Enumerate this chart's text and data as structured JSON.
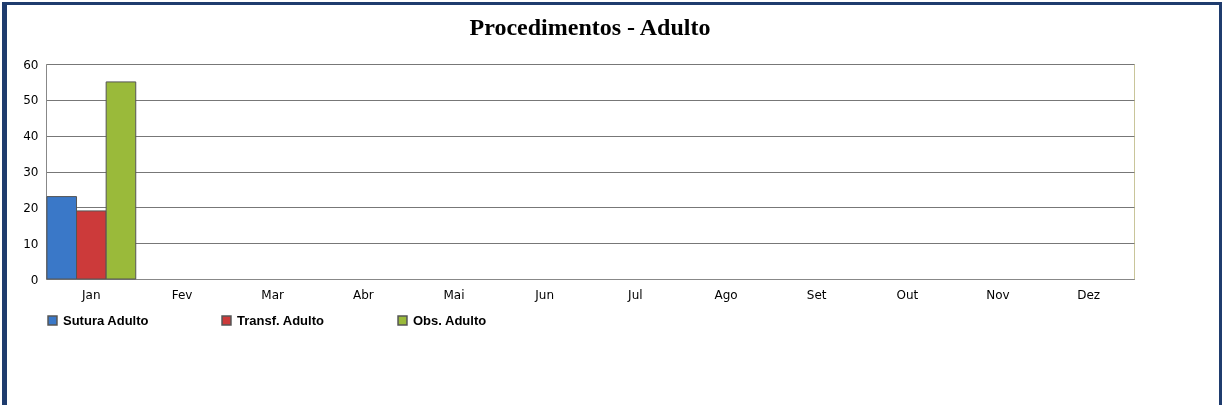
{
  "chart_data": {
    "type": "bar",
    "title": "Procedimentos - Adulto",
    "categories": [
      "Jan",
      "Fev",
      "Mar",
      "Abr",
      "Mai",
      "Jun",
      "Jul",
      "Ago",
      "Set",
      "Out",
      "Nov",
      "Dez"
    ],
    "series": [
      {
        "name": "Sutura Adulto",
        "color": "#3a78c8",
        "values": [
          23,
          null,
          null,
          null,
          null,
          null,
          null,
          null,
          null,
          null,
          null,
          null
        ]
      },
      {
        "name": "Transf. Adulto",
        "color": "#cc3a3a",
        "values": [
          19,
          null,
          null,
          null,
          null,
          null,
          null,
          null,
          null,
          null,
          null,
          null
        ]
      },
      {
        "name": "Obs. Adulto",
        "color": "#9aba3a",
        "values": [
          55,
          null,
          null,
          null,
          null,
          null,
          null,
          null,
          null,
          null,
          null,
          null
        ]
      }
    ],
    "ylim": [
      0,
      60
    ],
    "yticks": [
      0,
      10,
      20,
      30,
      40,
      50,
      60
    ],
    "grid": "y",
    "legend": "bottom"
  }
}
